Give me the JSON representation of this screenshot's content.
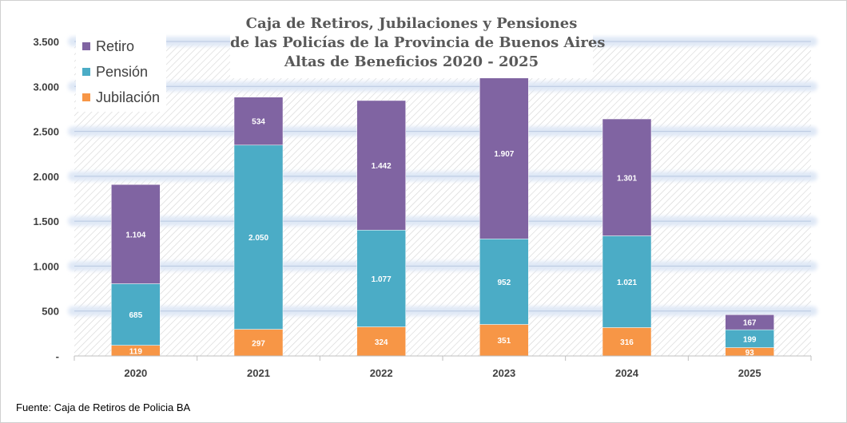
{
  "chart_data": {
    "type": "bar",
    "stacked": true,
    "title": [
      "Caja de Retiros, Jubilaciones y Pensiones",
      "de las Policías de la Provincia de Buenos Aires",
      "Altas de Beneficios 2020  - 2025"
    ],
    "categories": [
      "2020",
      "2021",
      "2022",
      "2023",
      "2024",
      "2025"
    ],
    "series": [
      {
        "name": "Jubilación",
        "color": "#f79646",
        "values": [
          119,
          297,
          324,
          351,
          316,
          93
        ],
        "labels": [
          "119",
          "297",
          "324",
          "351",
          "316",
          "93"
        ]
      },
      {
        "name": "Pensión",
        "color": "#4bacc6",
        "values": [
          685,
          2050,
          1077,
          952,
          1021,
          199
        ],
        "labels": [
          "685",
          "2.050",
          "1.077",
          "952",
          "1.021",
          "199"
        ]
      },
      {
        "name": "Retiro",
        "color": "#8064a2",
        "values": [
          1104,
          534,
          1442,
          1907,
          1301,
          167
        ],
        "labels": [
          "1.104",
          "534",
          "1.442",
          "1.907",
          "1.301",
          "167"
        ]
      }
    ],
    "legend_order": [
      "Retiro",
      "Pensión",
      "Jubilación"
    ],
    "legend_position": "top-left",
    "ylim": [
      0,
      3500
    ],
    "yticks": [
      0,
      500,
      1000,
      1500,
      2000,
      2500,
      3000,
      3500
    ],
    "ytick_labels": [
      "-",
      "500",
      "1.000",
      "1.500",
      "2.000",
      "2.500",
      "3.000",
      "3.500"
    ],
    "grid": true,
    "xlabel": "",
    "ylabel": ""
  },
  "source_note": "Fuente: Caja de Retiros de Policia BA"
}
